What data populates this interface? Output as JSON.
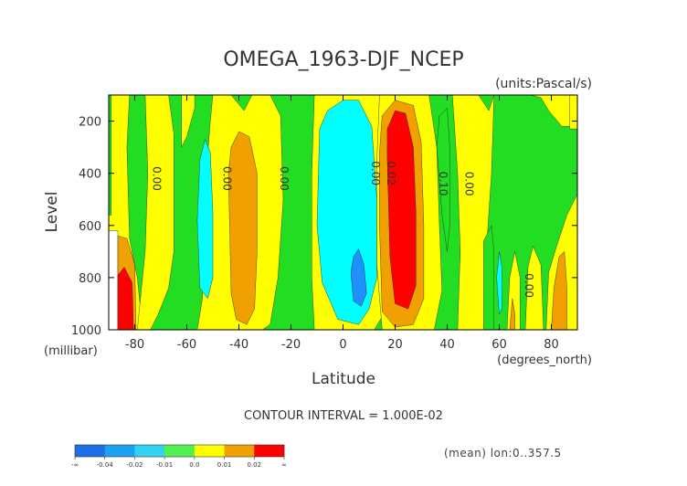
{
  "chart_data": {
    "type": "contour",
    "title": "OMEGA_1963-DJF_NCEP",
    "units_label": "(units:Pascal/s)",
    "xlabel": "Latitude",
    "x_units_label": "(degrees_north)",
    "ylabel": "Level",
    "y_units_label": "(millibar)",
    "xlim": [
      -90,
      90
    ],
    "ylim": [
      1000,
      100
    ],
    "x_ticks": [
      -80,
      -60,
      -40,
      -20,
      0,
      20,
      40,
      60,
      80
    ],
    "x_tick_labels": [
      "-80",
      "-60",
      "-40",
      "-20",
      "0",
      "20",
      "40",
      "60",
      "80"
    ],
    "y_ticks": [
      200,
      400,
      600,
      800,
      1000
    ],
    "y_tick_labels": [
      "200",
      "400",
      "600",
      "800",
      "1000"
    ],
    "contour_interval_label": "CONTOUR INTERVAL = 1.000E-02",
    "footer_note": "(mean) lon:0..357.5",
    "contour_labels": [
      {
        "text": "0.00",
        "lat": -73,
        "lev": 420
      },
      {
        "text": "0.00",
        "lat": -46,
        "lev": 420
      },
      {
        "text": "0.00",
        "lat": -24,
        "lev": 420
      },
      {
        "text": "0.00",
        "lat": 11,
        "lev": 400
      },
      {
        "text": "0.02",
        "lat": 17,
        "lev": 400
      },
      {
        "text": "0.10",
        "lat": 37,
        "lev": 440
      },
      {
        "text": "0.00",
        "lat": 47,
        "lev": 440
      },
      {
        "text": "0.00",
        "lat": 70,
        "lev": 830
      }
    ],
    "color_levels": [
      {
        "label": "-∞",
        "color": "#1e6ee6"
      },
      {
        "label": "-0.04",
        "color": "#1ea0f0"
      },
      {
        "label": "-0.02",
        "color": "#32d2f0"
      },
      {
        "label": "-0.01",
        "color": "#50f050"
      },
      {
        "label": "0.0",
        "color": "#ffff00"
      },
      {
        "label": "0.01",
        "color": "#f0a000"
      },
      {
        "label": "0.02",
        "color": "#ff0000"
      },
      {
        "label": "∞",
        "color": "#ff0000"
      }
    ],
    "colors": {
      "green": "#22dd22",
      "yellow": "#ffff00",
      "cyan": "#00ffff",
      "blue": "#1e90ff",
      "orange": "#f0a000",
      "red": "#ff0000",
      "white": "#ffffff"
    }
  }
}
